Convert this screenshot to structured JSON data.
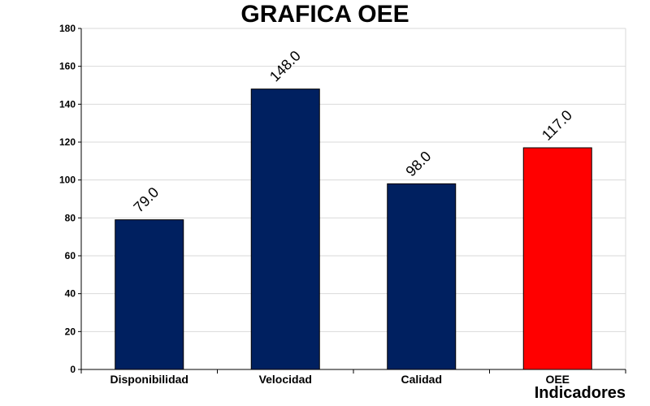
{
  "chart_data": {
    "type": "bar",
    "title": "GRAFICA OEE",
    "xlabel": "Indicadores",
    "ylabel": "",
    "categories": [
      "Disponibilidad",
      "Velocidad",
      "Calidad",
      "OEE"
    ],
    "values": [
      79.0,
      148.0,
      98.0,
      117.0
    ],
    "data_labels": [
      "79.0",
      "148.0",
      "98.0",
      "117.0"
    ],
    "bar_colors": [
      "#002060",
      "#002060",
      "#002060",
      "#ff0000"
    ],
    "ylim": [
      0,
      180
    ],
    "yticks": [
      0,
      20,
      40,
      60,
      80,
      100,
      120,
      140,
      160,
      180
    ],
    "grid": true,
    "legend": "none"
  }
}
